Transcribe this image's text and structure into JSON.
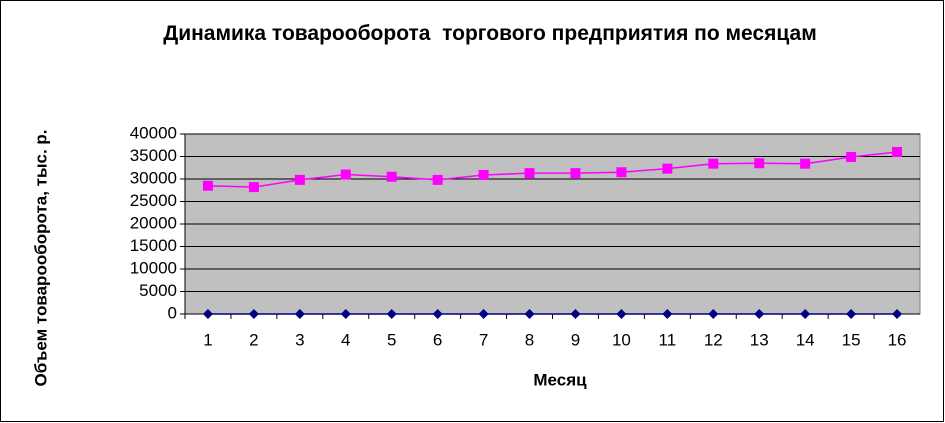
{
  "chart_data": {
    "type": "line",
    "title": "Динамика товарооборота  торгового предприятия по месяцам",
    "x_label": "Месяц",
    "y_label": "Объем товарооборота, тыс. р.",
    "categories": [
      1,
      2,
      3,
      4,
      5,
      6,
      7,
      8,
      9,
      10,
      11,
      12,
      13,
      14,
      15,
      16
    ],
    "series": [
      {
        "color": "#000080",
        "marker": "diamond",
        "values": [
          0,
          0,
          0,
          0,
          0,
          0,
          0,
          0,
          0,
          0,
          0,
          0,
          0,
          0,
          0,
          0
        ]
      },
      {
        "color": "#ff00ff",
        "marker": "square",
        "values": [
          28500,
          28200,
          29800,
          31000,
          30500,
          29800,
          30900,
          31300,
          31300,
          31500,
          32300,
          33400,
          33500,
          33400,
          34900,
          36000
        ]
      }
    ],
    "ylim": [
      0,
      40000
    ],
    "yticks": [
      0,
      5000,
      10000,
      15000,
      20000,
      25000,
      30000,
      35000,
      40000
    ],
    "grid": true,
    "plot_background": "#c0c0c0"
  }
}
